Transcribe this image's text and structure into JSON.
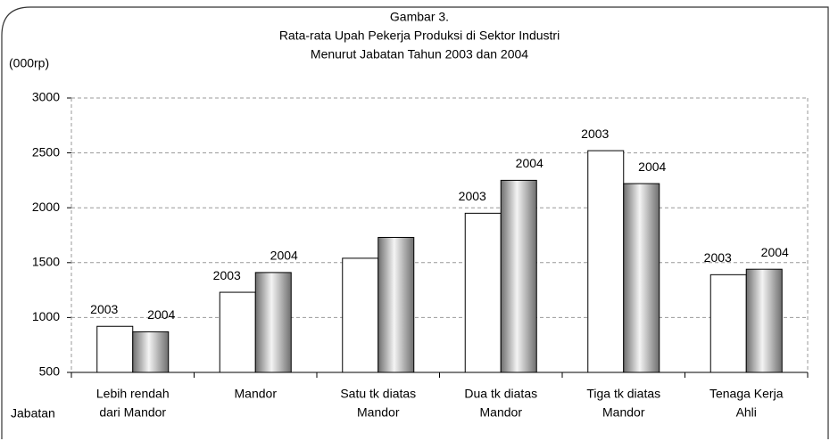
{
  "chart_data": {
    "type": "bar",
    "title": [
      "Gambar 3.",
      "Rata-rata Upah Pekerja Produksi di Sektor Industri",
      "Menurut Jabatan Tahun 2003 dan 2004"
    ],
    "ylabel": "(000rp)",
    "xlabel": "Jabatan",
    "categories": [
      [
        "Lebih rendah",
        "dari Mandor"
      ],
      [
        "Mandor"
      ],
      [
        "Satu tk diatas",
        "Mandor"
      ],
      [
        "Dua tk diatas",
        "Mandor"
      ],
      [
        "Tiga tk diatas",
        "Mandor"
      ],
      [
        "Tenaga Kerja",
        "Ahli"
      ]
    ],
    "series": [
      {
        "name": "2003",
        "color": "#ffffff",
        "values": [
          920,
          1230,
          1540,
          1950,
          2520,
          1390
        ],
        "annotations": [
          "2003",
          "2003",
          null,
          "2003",
          "2003",
          "2003"
        ]
      },
      {
        "name": "2004",
        "color": "#808080",
        "values": [
          870,
          1410,
          1730,
          2250,
          2220,
          1440
        ],
        "annotations": [
          "2004",
          "2004",
          null,
          "2004",
          "2004",
          "2004"
        ]
      }
    ],
    "ylim": [
      500,
      3000
    ],
    "yticks": [
      500,
      1000,
      1500,
      2000,
      2500,
      3000
    ],
    "grid": true
  }
}
